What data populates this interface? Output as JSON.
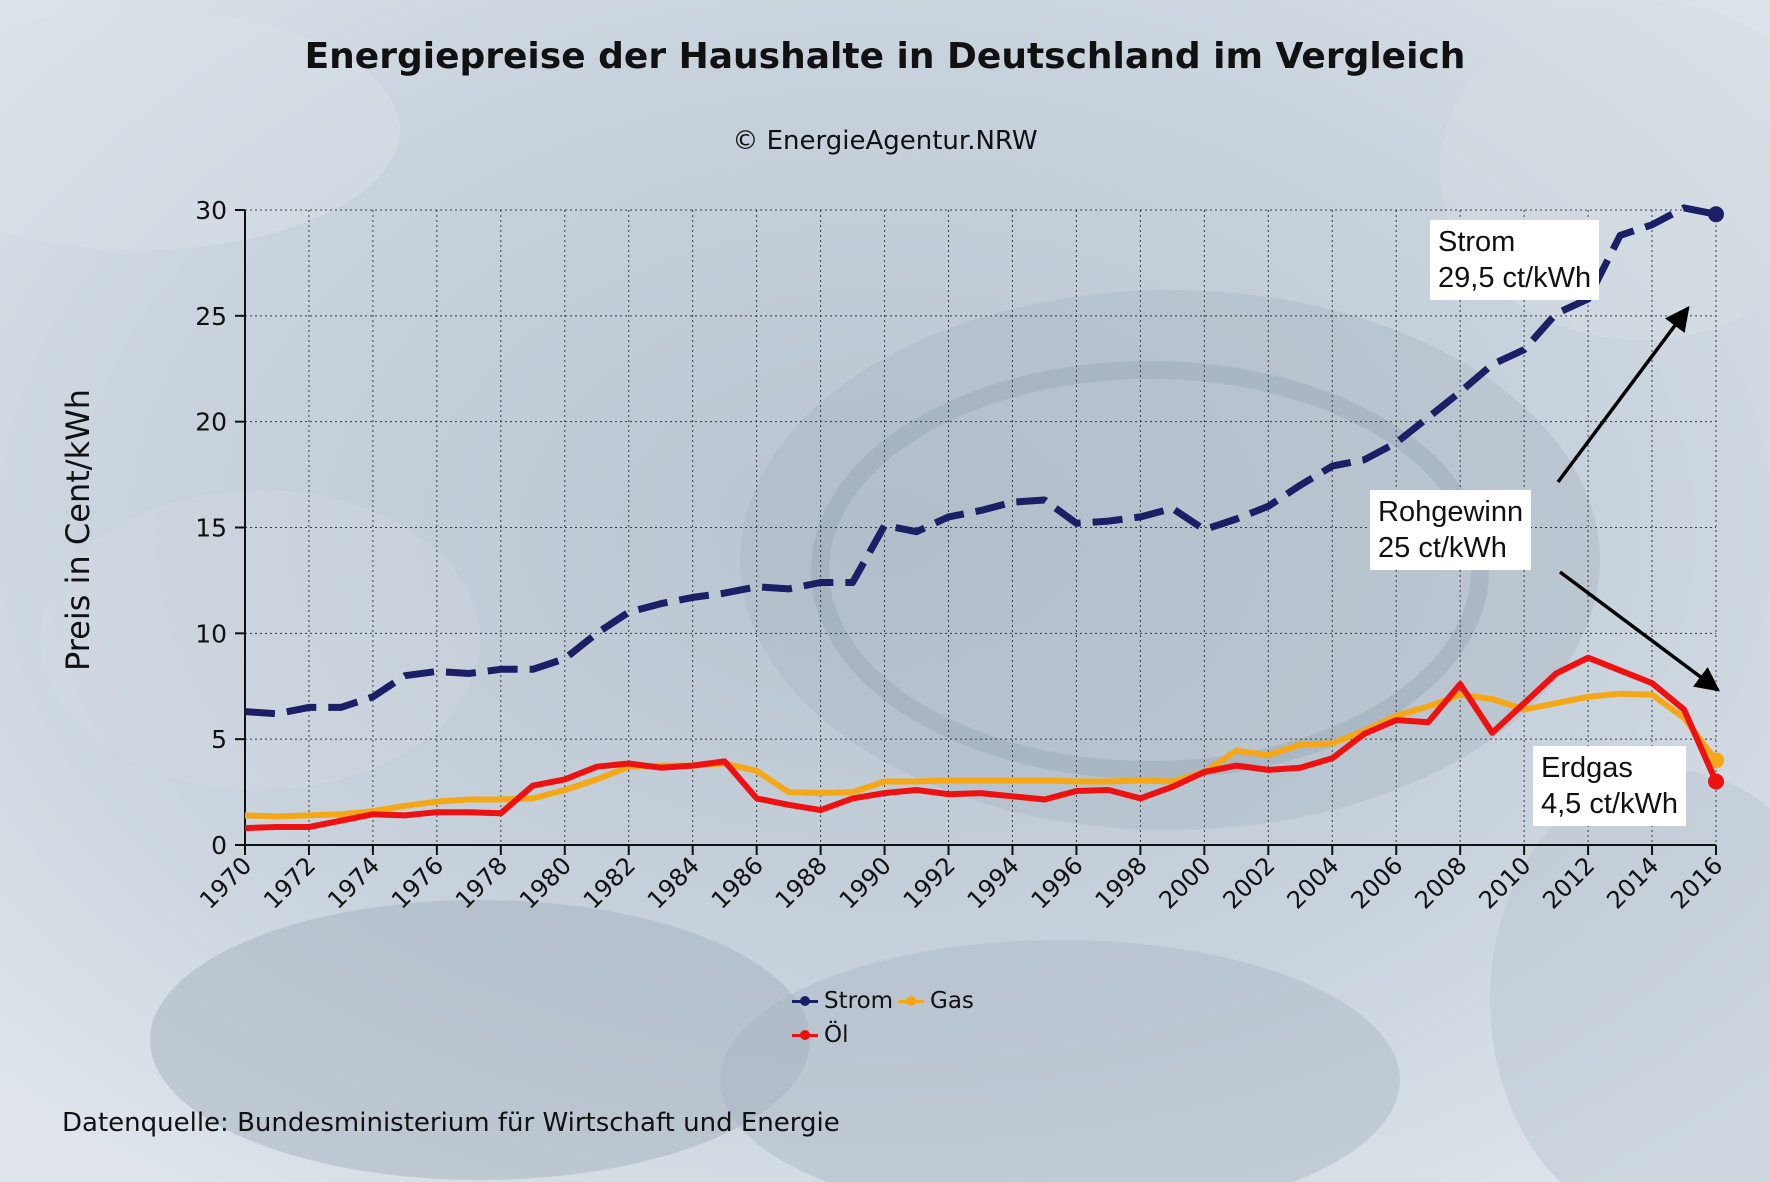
{
  "chart_data": {
    "type": "line",
    "title": "Energiepreise der Haushalte  in Deutschland im Vergleich",
    "subtitle": "© EnergieAgentur.NRW",
    "ylabel": "Preis in Cent/kWh",
    "xlabel": "",
    "ylim": [
      0,
      30
    ],
    "yticks": [
      0,
      5,
      10,
      15,
      20,
      25,
      30
    ],
    "xlim": [
      1970,
      2016
    ],
    "xticks": [
      1970,
      1972,
      1974,
      1976,
      1978,
      1980,
      1982,
      1984,
      1986,
      1988,
      1990,
      1992,
      1994,
      1996,
      1998,
      2000,
      2002,
      2004,
      2006,
      2008,
      2010,
      2012,
      2014,
      2016
    ],
    "grid": true,
    "x": [
      1970,
      1971,
      1972,
      1973,
      1974,
      1975,
      1976,
      1977,
      1978,
      1979,
      1980,
      1981,
      1982,
      1983,
      1984,
      1985,
      1986,
      1987,
      1988,
      1989,
      1990,
      1991,
      1992,
      1993,
      1994,
      1995,
      1996,
      1997,
      1998,
      1999,
      2000,
      2001,
      2002,
      2003,
      2004,
      2005,
      2006,
      2007,
      2008,
      2009,
      2010,
      2011,
      2012,
      2013,
      2014,
      2015,
      2016
    ],
    "series": [
      {
        "name": "Strom",
        "color": "#1a1f66",
        "style": "dashed",
        "values": [
          6.3,
          6.2,
          6.5,
          6.5,
          7.0,
          8.0,
          8.2,
          8.1,
          8.3,
          8.3,
          8.8,
          10.0,
          11.0,
          11.4,
          11.7,
          11.9,
          12.2,
          12.1,
          12.4,
          12.4,
          15.1,
          14.8,
          15.5,
          15.8,
          16.2,
          16.3,
          15.2,
          15.3,
          15.5,
          15.9,
          14.9,
          15.4,
          16.0,
          17.0,
          17.9,
          18.2,
          19.0,
          20.2,
          21.4,
          22.7,
          23.4,
          25.1,
          25.8,
          28.8,
          29.3,
          30.1,
          29.8
        ]
      },
      {
        "name": "Gas",
        "color": "#f5a817",
        "style": "solid",
        "values": [
          1.4,
          1.35,
          1.4,
          1.45,
          1.6,
          1.85,
          2.05,
          2.15,
          2.15,
          2.2,
          2.6,
          3.1,
          3.7,
          3.75,
          3.75,
          3.85,
          3.5,
          2.5,
          2.45,
          2.5,
          3.0,
          3.0,
          3.05,
          3.05,
          3.05,
          3.05,
          3.0,
          3.0,
          3.05,
          3.0,
          3.45,
          4.45,
          4.25,
          4.75,
          4.8,
          5.4,
          6.1,
          6.55,
          7.1,
          6.9,
          6.4,
          6.7,
          7.0,
          7.15,
          7.1,
          6.0,
          4.0
        ]
      },
      {
        "name": "Öl",
        "color": "#ee1111",
        "style": "solid",
        "values": [
          0.8,
          0.85,
          0.85,
          1.15,
          1.45,
          1.4,
          1.55,
          1.55,
          1.5,
          2.8,
          3.1,
          3.7,
          3.85,
          3.65,
          3.75,
          3.95,
          2.2,
          1.9,
          1.65,
          2.2,
          2.45,
          2.6,
          2.4,
          2.45,
          2.3,
          2.15,
          2.55,
          2.6,
          2.2,
          2.75,
          3.45,
          3.75,
          3.55,
          3.65,
          4.1,
          5.25,
          5.9,
          5.8,
          7.6,
          5.3,
          6.7,
          8.1,
          8.85,
          8.25,
          7.65,
          6.4,
          3.0
        ]
      }
    ],
    "annotations": [
      {
        "line1": "Strom",
        "line2": "29,5 ct/kWh"
      },
      {
        "line1": "Rohgewinn",
        "line2": "25 ct/kWh"
      },
      {
        "line1": "Erdgas",
        "line2": "4,5 ct/kWh"
      }
    ],
    "legend_position": "bottom-center",
    "source": "Datenquelle: Bundesministerium für Wirtschaft und Energie"
  }
}
